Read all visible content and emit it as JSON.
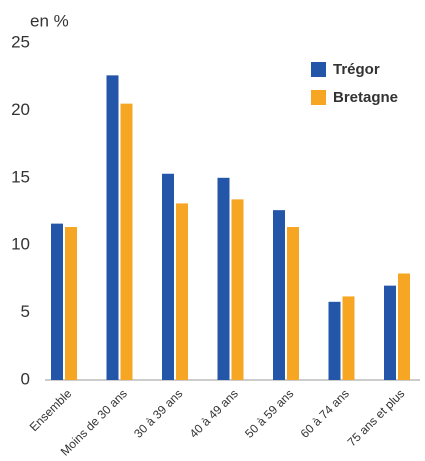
{
  "chart_data": {
    "type": "bar",
    "y_label": "en %",
    "categories": [
      "Ensemble",
      "Moins de 30 ans",
      "30 à 39 ans",
      "40 à 49 ans",
      "50 à 59 ans",
      "60 à 74 ans",
      "75 ans et plus"
    ],
    "series": [
      {
        "name": "Trégor",
        "color": "#2356a8",
        "values": [
          11.6,
          22.6,
          15.3,
          15.0,
          12.6,
          5.8,
          7.0
        ]
      },
      {
        "name": "Bretagne",
        "color": "#f6a623",
        "values": [
          11.35,
          20.5,
          13.1,
          13.4,
          11.35,
          6.2,
          7.9
        ]
      }
    ],
    "ylim": [
      0,
      25
    ],
    "yticks": [
      0,
      5,
      10,
      15,
      20,
      25
    ],
    "grid": false,
    "legend": "top-right"
  }
}
